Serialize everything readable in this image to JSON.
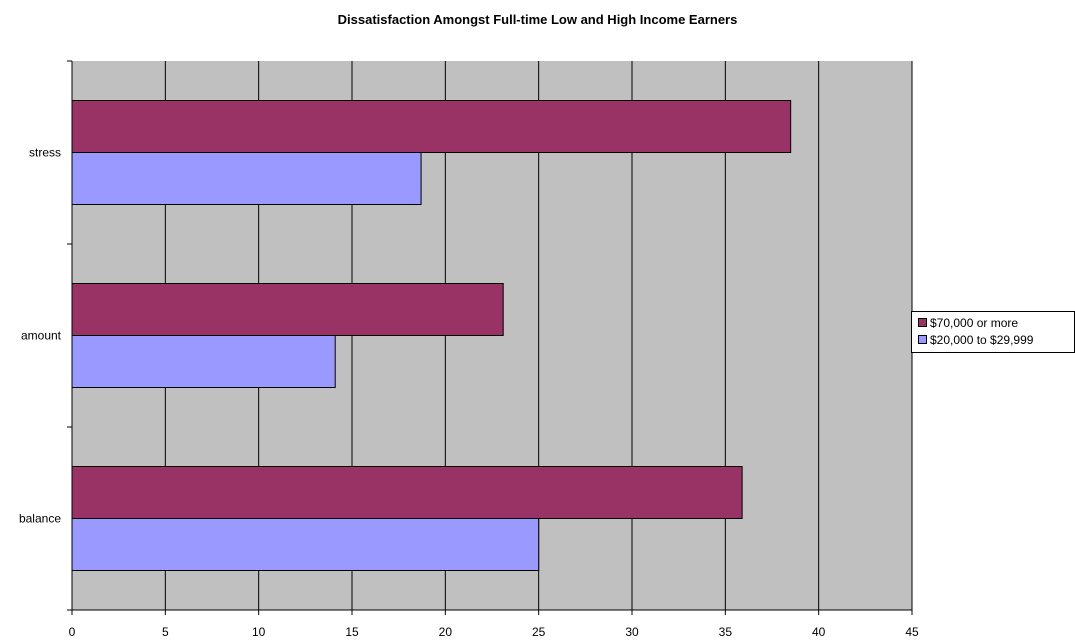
{
  "chart_data": {
    "type": "bar",
    "orientation": "horizontal",
    "title": "Dissatisfaction Amongst Full-time Low and High Income Earners",
    "xlabel": "",
    "ylabel": "",
    "categories": [
      "balance",
      "amount",
      "stress"
    ],
    "series": [
      {
        "name": "$70,000 or more",
        "color": "#993366",
        "values": [
          35.9,
          23.1,
          38.5
        ]
      },
      {
        "name": "$20,000 to $29,999",
        "color": "#9999ff",
        "values": [
          25.0,
          14.1,
          18.7
        ]
      }
    ],
    "xlim": [
      0,
      45
    ],
    "xticks": [
      "0",
      "5",
      "10",
      "15",
      "20",
      "25",
      "30",
      "35",
      "40",
      "45"
    ],
    "plot_background": "#c0c0c0",
    "grid": "vertical",
    "legend_position": "right"
  }
}
